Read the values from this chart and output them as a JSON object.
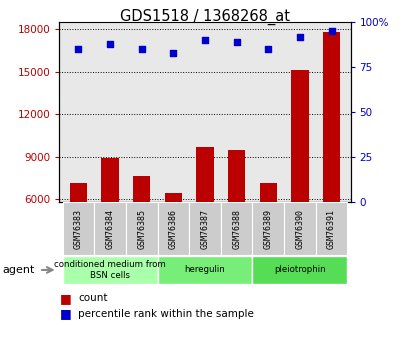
{
  "title": "GDS1518 / 1368268_at",
  "samples": [
    "GSM76383",
    "GSM76384",
    "GSM76385",
    "GSM76386",
    "GSM76387",
    "GSM76388",
    "GSM76389",
    "GSM76390",
    "GSM76391"
  ],
  "counts": [
    7100,
    8900,
    7600,
    6400,
    9700,
    9500,
    7100,
    15100,
    17800
  ],
  "percentiles": [
    85,
    88,
    85,
    83,
    90,
    89,
    85,
    92,
    95
  ],
  "ylim_left": [
    5800,
    18500
  ],
  "ylim_right": [
    0,
    100
  ],
  "yticks_left": [
    6000,
    9000,
    12000,
    15000,
    18000
  ],
  "yticks_right": [
    0,
    25,
    50,
    75,
    100
  ],
  "groups": [
    {
      "label": "conditioned medium from\nBSN cells",
      "start": 0,
      "end": 3,
      "color": "#aaffaa"
    },
    {
      "label": "heregulin",
      "start": 3,
      "end": 6,
      "color": "#77ee77"
    },
    {
      "label": "pleiotrophin",
      "start": 6,
      "end": 9,
      "color": "#55dd55"
    }
  ],
  "bar_color": "#bb0000",
  "dot_color": "#0000cc",
  "bar_width": 0.55,
  "plot_bg": "#e8e8e8",
  "sample_box_color": "#cccccc",
  "agent_label": "agent"
}
